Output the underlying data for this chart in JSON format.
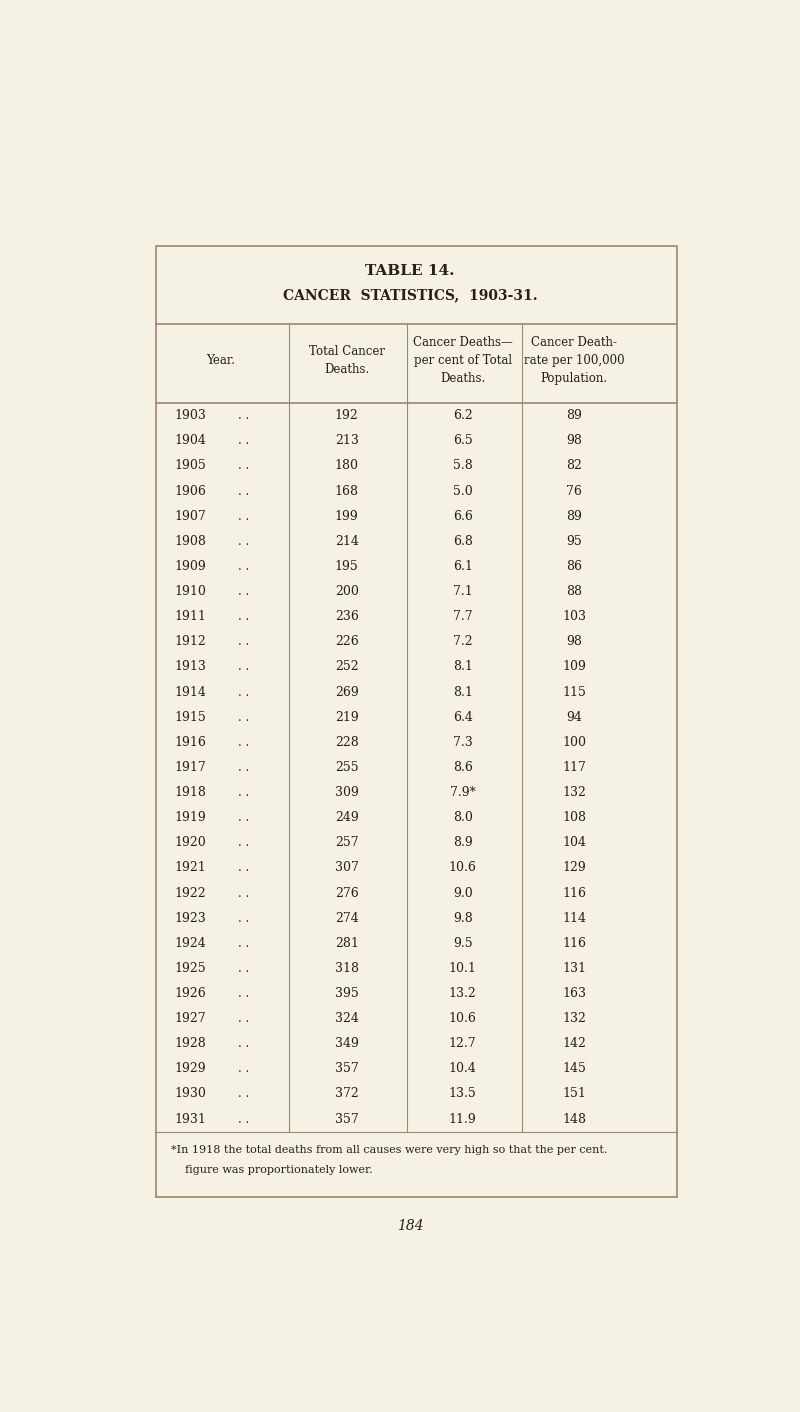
{
  "title1": "TABLE 14.",
  "title2": "CANCER  STATISTICS,  1903-31.",
  "col_headers": [
    "Year.",
    "Total Cancer\nDeaths.",
    "Cancer Deaths—\nper cent of Total\nDeaths.",
    "Cancer Death-\nrate per 100,000\nPopulation."
  ],
  "years": [
    1903,
    1904,
    1905,
    1906,
    1907,
    1908,
    1909,
    1910,
    1911,
    1912,
    1913,
    1914,
    1915,
    1916,
    1917,
    1918,
    1919,
    1920,
    1921,
    1922,
    1923,
    1924,
    1925,
    1926,
    1927,
    1928,
    1929,
    1930,
    1931
  ],
  "total_deaths": [
    192,
    213,
    180,
    168,
    199,
    214,
    195,
    200,
    236,
    226,
    252,
    269,
    219,
    228,
    255,
    309,
    249,
    257,
    307,
    276,
    274,
    281,
    318,
    395,
    324,
    349,
    357,
    372,
    357
  ],
  "pct_deaths": [
    "6.2",
    "6.5",
    "5.8",
    "5.0",
    "6.6",
    "6.8",
    "6.1",
    "7.1",
    "7.7",
    "7.2",
    "8.1",
    "8.1",
    "6.4",
    "7.3",
    "8.6",
    "7.9*",
    "8.0",
    "8.9",
    "10.6",
    "9.0",
    "9.8",
    "9.5",
    "10.1",
    "13.2",
    "10.6",
    "12.7",
    "10.4",
    "13.5",
    "11.9"
  ],
  "death_rate": [
    89,
    98,
    82,
    76,
    89,
    95,
    86,
    88,
    103,
    98,
    109,
    115,
    94,
    100,
    117,
    132,
    108,
    104,
    129,
    116,
    114,
    116,
    131,
    163,
    132,
    142,
    145,
    151,
    148
  ],
  "footnote_line1": "*In 1918 the total deaths from all causes were very high so that the per cent.",
  "footnote_line2": "    figure was proportionately lower.",
  "page_num": "184",
  "bg_color": "#f5f2e3",
  "text_color": "#2a1f10",
  "border_color": "#9a8870",
  "table_bg": "#f5f2e3"
}
